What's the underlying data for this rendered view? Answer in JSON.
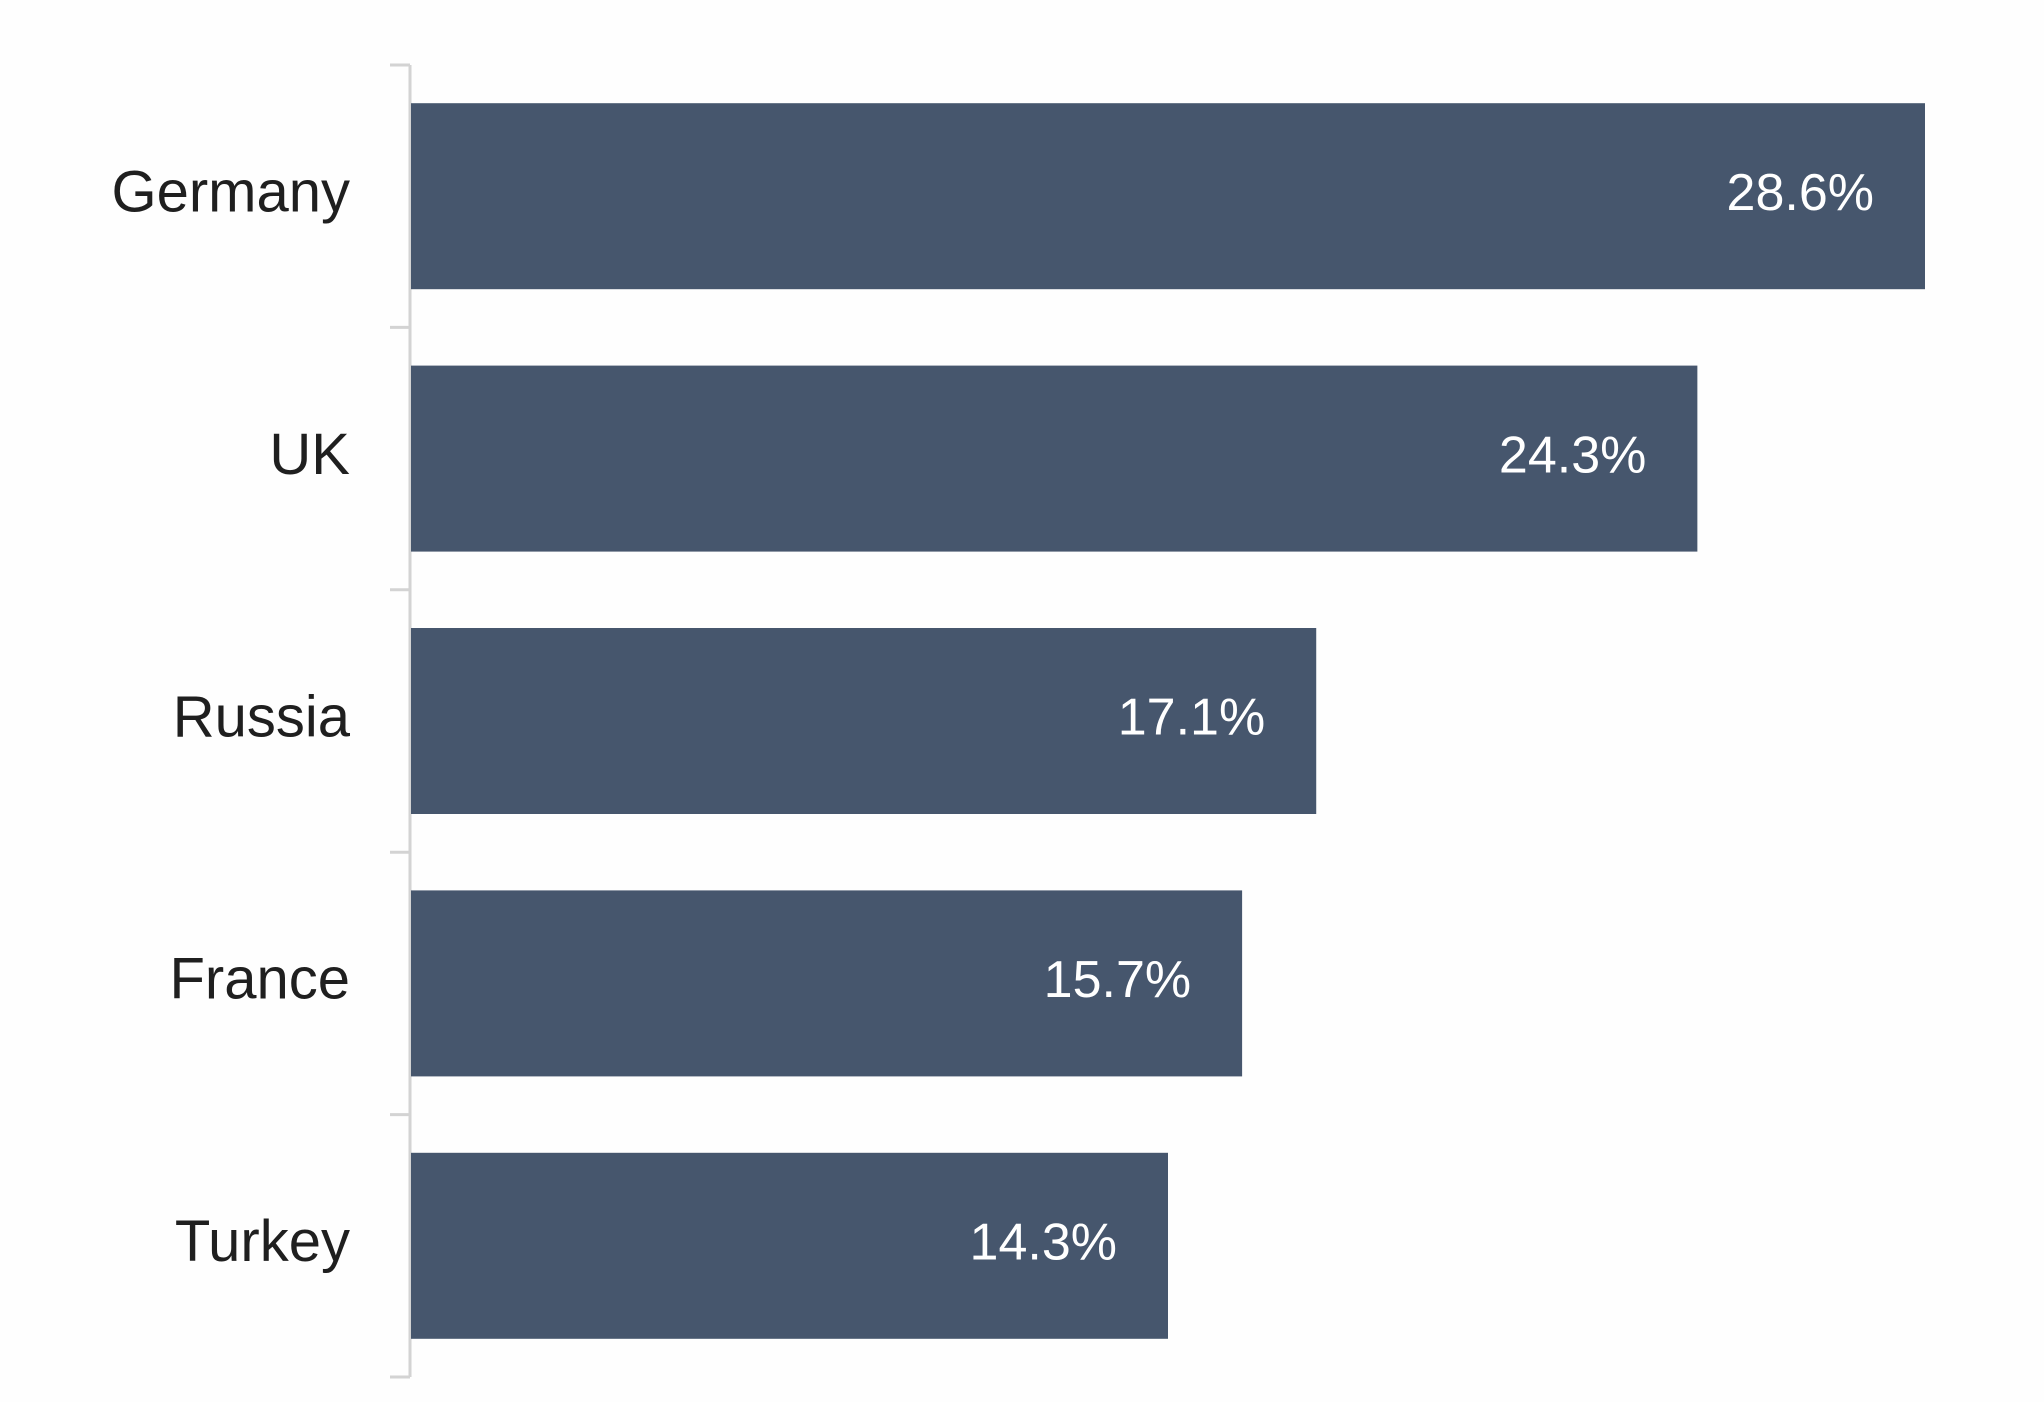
{
  "colors": {
    "bar": "#46566d",
    "axis": "#d3d3d3",
    "label": "#1f1f1f",
    "value_label": "#ffffff",
    "background": "#fefefe"
  },
  "chart_data": {
    "type": "bar",
    "orientation": "horizontal",
    "categories": [
      "Germany",
      "UK",
      "Russia",
      "France",
      "Turkey"
    ],
    "values": [
      28.6,
      24.3,
      17.1,
      15.7,
      14.3
    ],
    "value_labels": [
      "28.6%",
      "24.3%",
      "17.1%",
      "15.7%",
      "14.3%"
    ],
    "title": "",
    "xlabel": "",
    "ylabel": "",
    "xlim": [
      0,
      28.6
    ],
    "grid": false,
    "legend": "none"
  }
}
